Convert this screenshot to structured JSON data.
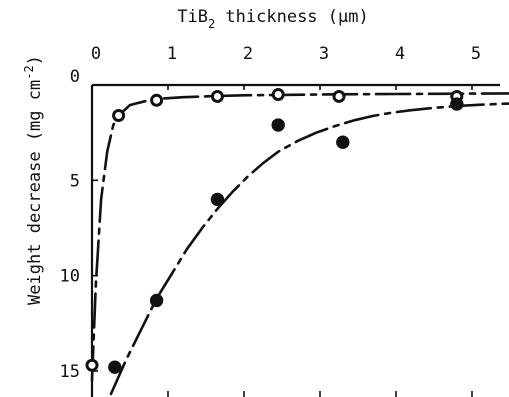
{
  "chart_data": {
    "type": "scatter",
    "title": "",
    "xlabel_main": "TiB",
    "xlabel_sub": "2",
    "xlabel_rest": " thickness (",
    "xlabel_mu": "μ",
    "xlabel_end": "m)",
    "ylabel_main": "Weight decrease (mg cm",
    "ylabel_sup": "-2",
    "ylabel_end": ")",
    "x_axis_position": "top",
    "y_axis_inverted": true,
    "xlim": [
      0,
      5.6
    ],
    "ylim": [
      0,
      16
    ],
    "xticks": [
      0,
      1,
      2,
      3,
      4,
      5
    ],
    "yticks": [
      0,
      5,
      10,
      15
    ],
    "grid": false,
    "series": [
      {
        "marker": "open-circle",
        "x": [
          0,
          0.35,
          0.85,
          1.65,
          2.45,
          3.25,
          4.8
        ],
        "y": [
          14.7,
          1.6,
          0.8,
          0.6,
          0.5,
          0.6,
          0.6
        ],
        "curve": {
          "style": "dashed",
          "x": [
            0,
            0.05,
            0.12,
            0.2,
            0.28,
            0.35,
            0.5,
            0.7,
            0.9,
            1.2,
            1.6,
            2.0,
            2.5,
            3.0,
            3.5,
            4.0,
            4.5,
            5.0,
            5.6
          ],
          "y": [
            15.5,
            10.5,
            6.0,
            3.5,
            2.1,
            1.6,
            1.05,
            0.85,
            0.72,
            0.64,
            0.58,
            0.54,
            0.52,
            0.5,
            0.48,
            0.47,
            0.46,
            0.45,
            0.44
          ]
        }
      },
      {
        "marker": "filled-circle",
        "x": [
          0.3,
          0.85,
          1.65,
          2.45,
          3.3,
          4.8
        ],
        "y": [
          14.8,
          11.3,
          6.0,
          2.1,
          3.0,
          1.0
        ],
        "curve": {
          "style": "dashed",
          "x": [
            0.25,
            0.45,
            0.65,
            0.85,
            1.05,
            1.25,
            1.45,
            1.65,
            1.85,
            2.05,
            2.25,
            2.45,
            2.7,
            2.95,
            3.2,
            3.45,
            3.7,
            3.95,
            4.2,
            4.5,
            4.8,
            5.2,
            5.6
          ],
          "y": [
            16.2,
            14.4,
            12.8,
            11.2,
            9.9,
            8.6,
            7.5,
            6.5,
            5.6,
            4.8,
            4.1,
            3.5,
            2.95,
            2.5,
            2.15,
            1.85,
            1.62,
            1.45,
            1.32,
            1.2,
            1.1,
            1.02,
            0.96
          ]
        }
      }
    ]
  }
}
